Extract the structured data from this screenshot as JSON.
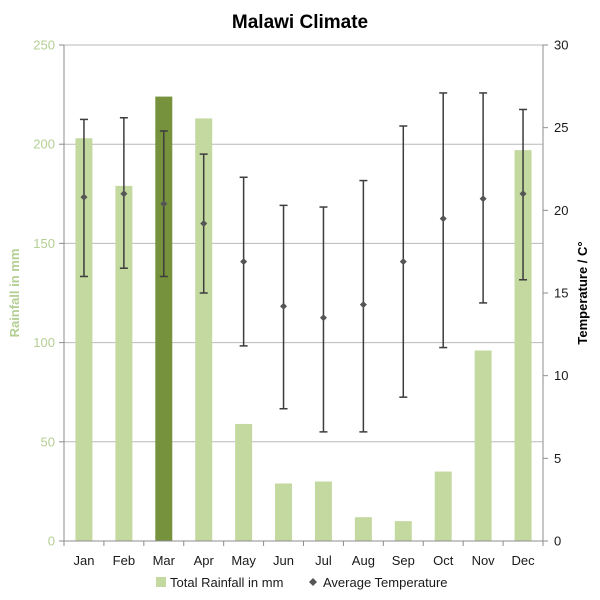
{
  "chart_data": {
    "type": "bar",
    "title": "Malawi Climate",
    "categories": [
      "Jan",
      "Feb",
      "Mar",
      "Apr",
      "May",
      "Jun",
      "Jul",
      "Aug",
      "Sep",
      "Oct",
      "Nov",
      "Dec"
    ],
    "ylabel": "Rainfall in mm",
    "y2label": "Temperature / C°",
    "ylim": [
      0,
      250
    ],
    "y2lim": [
      0,
      30
    ],
    "yticks": [
      "0",
      "50",
      "100",
      "150",
      "200",
      "250"
    ],
    "y2ticks": [
      "0",
      "5",
      "10",
      "15",
      "20",
      "25",
      "30"
    ],
    "grid": true,
    "legend_position": "bottom",
    "series": [
      {
        "name": "Total Rainfall in mm",
        "kind": "bar",
        "axis": "left",
        "color": "#c3d9a0",
        "highlight_color": "#76923c",
        "highlight_category": "Mar",
        "values": [
          203,
          179,
          224,
          213,
          59,
          29,
          30,
          12,
          10,
          35,
          96,
          197
        ]
      },
      {
        "name": "Average Temperature",
        "kind": "point_range",
        "axis": "right",
        "color": "#555555",
        "values": [
          20.8,
          21.0,
          20.4,
          19.2,
          16.9,
          14.2,
          13.5,
          14.3,
          16.9,
          19.5,
          20.7,
          21.0
        ],
        "max": [
          25.5,
          25.6,
          24.8,
          23.4,
          22.0,
          20.3,
          20.2,
          21.8,
          25.1,
          27.1,
          27.1,
          26.1
        ],
        "min": [
          16.0,
          16.5,
          16.0,
          15.0,
          11.8,
          8.0,
          6.6,
          6.6,
          8.7,
          11.7,
          14.4,
          15.8
        ]
      }
    ]
  }
}
